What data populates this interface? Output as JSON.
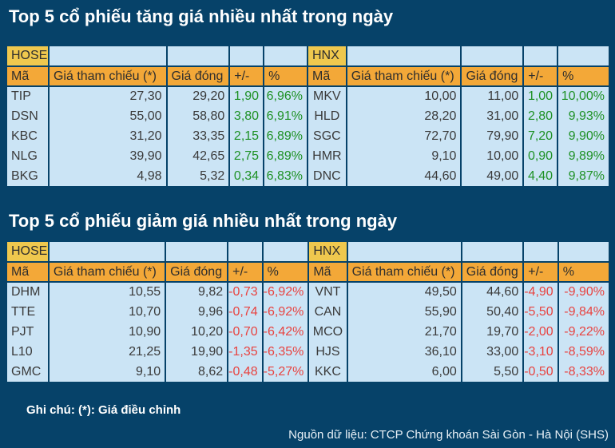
{
  "colors": {
    "background_navy": "#064269",
    "cell_blue": "#CBE4F5",
    "exchange_yellow": "#EFC84E",
    "header_orange": "#F3A838",
    "positive_green": "#1E9125",
    "negative_red": "#E84340",
    "title_white": "#FFFFFF"
  },
  "chart_data": [
    {
      "type": "table",
      "title": "Top 5 cổ phiếu tăng giá nhiều nhất trong ngày",
      "tables": [
        {
          "exchange": "HOSE",
          "headers": [
            "Mã",
            "Giá tham chiếu (*)",
            "Giá đóng",
            "+/-",
            "%"
          ],
          "rows": [
            [
              "TIP",
              "27,30",
              "29,20",
              "1,90",
              "6,96%"
            ],
            [
              "DSN",
              "55,00",
              "58,80",
              "3,80",
              "6,91%"
            ],
            [
              "KBC",
              "31,20",
              "33,35",
              "2,15",
              "6,89%"
            ],
            [
              "NLG",
              "39,90",
              "42,65",
              "2,75",
              "6,89%"
            ],
            [
              "BKG",
              "4,98",
              "5,32",
              "0,34",
              "6,83%"
            ]
          ]
        },
        {
          "exchange": "HNX",
          "headers": [
            "Mã",
            "Giá tham chiếu (*)",
            "Giá đóng",
            "+/-",
            "%"
          ],
          "rows": [
            [
              "MKV",
              "10,00",
              "11,00",
              "1,00",
              "10,00%"
            ],
            [
              "HLD",
              "28,20",
              "31,00",
              "2,80",
              "9,93%"
            ],
            [
              "SGC",
              "72,70",
              "79,90",
              "7,20",
              "9,90%"
            ],
            [
              "HMR",
              "9,10",
              "10,00",
              "0,90",
              "9,89%"
            ],
            [
              "DNC",
              "44,60",
              "49,00",
              "4,40",
              "9,87%"
            ]
          ]
        }
      ]
    },
    {
      "type": "table",
      "title": "Top 5 cổ phiếu giảm giá nhiều nhất trong ngày",
      "tables": [
        {
          "exchange": "HOSE",
          "headers": [
            "Mã",
            "Giá tham chiếu (*)",
            "Giá đóng",
            "+/-",
            "%"
          ],
          "rows": [
            [
              "DHM",
              "10,55",
              "9,82",
              "-0,73",
              "-6,92%"
            ],
            [
              "TTE",
              "10,70",
              "9,96",
              "-0,74",
              "-6,92%"
            ],
            [
              "PJT",
              "10,90",
              "10,20",
              "-0,70",
              "-6,42%"
            ],
            [
              "L10",
              "21,25",
              "19,90",
              "-1,35",
              "-6,35%"
            ],
            [
              "GMC",
              "9,10",
              "8,62",
              "-0,48",
              "-5,27%"
            ]
          ]
        },
        {
          "exchange": "HNX",
          "headers": [
            "Mã",
            "Giá tham chiếu (*)",
            "Giá đóng",
            "+/-",
            "%"
          ],
          "rows": [
            [
              "VNT",
              "49,50",
              "44,60",
              "-4,90",
              "-9,90%"
            ],
            [
              "CAN",
              "55,90",
              "50,40",
              "-5,50",
              "-9,84%"
            ],
            [
              "MCO",
              "21,70",
              "19,70",
              "-2,00",
              "-9,22%"
            ],
            [
              "HJS",
              "36,10",
              "33,00",
              "-3,10",
              "-8,59%"
            ],
            [
              "KKC",
              "6,00",
              "5,50",
              "-0,50",
              "-8,33%"
            ]
          ]
        }
      ]
    }
  ],
  "footer": {
    "note": "Ghi chú: (*): Giá điều chỉnh",
    "source": "Nguồn dữ liệu: CTCP Chứng khoán Sài Gòn - Hà Nội (SHS)"
  }
}
